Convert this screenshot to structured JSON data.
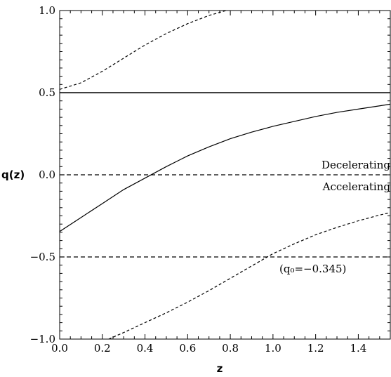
{
  "chart_data": {
    "type": "line",
    "xlabel": "z",
    "ylabel": "q(z)",
    "xlim": [
      0,
      1.55
    ],
    "ylim": [
      -1.0,
      1.0
    ],
    "x_ticks": [
      "0.0",
      "0.2",
      "0.4",
      "0.6",
      "0.8",
      "1.0",
      "1.2",
      "1.4"
    ],
    "y_ticks": [
      "−1.0",
      "−0.5",
      "0.0",
      "0.5",
      "1.0"
    ],
    "grid": false,
    "series": [
      {
        "style": "solid",
        "x": [
          0,
          0.1,
          0.2,
          0.3,
          0.4,
          0.5,
          0.6,
          0.7,
          0.8,
          0.9,
          1.0,
          1.1,
          1.2,
          1.3,
          1.4,
          1.5,
          1.55
        ],
        "y": [
          -0.345,
          -0.26,
          -0.175,
          -0.09,
          -0.02,
          0.05,
          0.115,
          0.17,
          0.22,
          0.26,
          0.295,
          0.325,
          0.355,
          0.38,
          0.4,
          0.42,
          0.43
        ]
      },
      {
        "style": "dashed",
        "x": [
          0,
          0.1,
          0.2,
          0.3,
          0.4,
          0.5,
          0.6,
          0.7,
          0.78
        ],
        "y": [
          0.52,
          0.56,
          0.63,
          0.71,
          0.79,
          0.86,
          0.92,
          0.97,
          1.0
        ]
      },
      {
        "style": "dashed",
        "x": [
          0.23,
          0.3,
          0.4,
          0.5,
          0.6,
          0.7,
          0.8,
          0.9,
          1.0,
          1.1,
          1.2,
          1.3,
          1.4,
          1.5,
          1.55
        ],
        "y": [
          -1.0,
          -0.96,
          -0.9,
          -0.84,
          -0.775,
          -0.705,
          -0.63,
          -0.555,
          -0.48,
          -0.42,
          -0.365,
          -0.32,
          -0.28,
          -0.245,
          -0.23
        ]
      }
    ],
    "reference_lines": [
      {
        "y": 0.5,
        "style": "solid"
      },
      {
        "y": 0.0,
        "style": "dashed"
      },
      {
        "y": -0.5,
        "style": "dashed"
      }
    ],
    "annotations": {
      "decelerating": "Decelerating",
      "accelerating": "Accelerating",
      "q0_note": "(q₀=−0.345)"
    }
  }
}
